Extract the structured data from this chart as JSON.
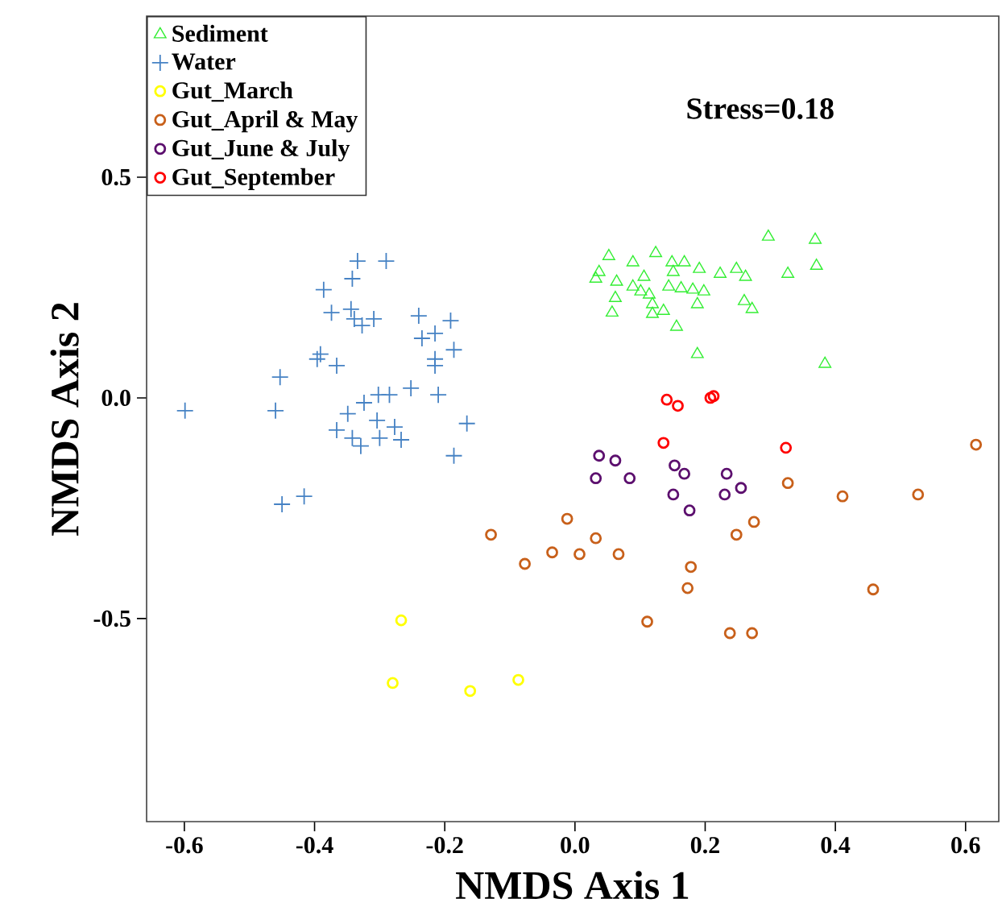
{
  "chart_data": {
    "type": "scatter",
    "xlabel": "NMDS Axis 1",
    "ylabel": "NMDS Axis 2",
    "annotations": [
      "Stress=0.18"
    ],
    "xlim": [
      -0.658,
      0.651
    ],
    "ylim": [
      -0.96,
      0.865
    ],
    "xticks": [
      -0.6,
      -0.4,
      -0.2,
      {
        "value": 0,
        "label": "0.0"
      },
      0.2,
      0.4,
      0.6
    ],
    "yticks": [
      -0.5,
      {
        "value": 0,
        "label": "0.0"
      },
      0.5
    ],
    "grid": false,
    "legend": "top left",
    "series": [
      {
        "name": "Sediment",
        "color": "#33ee33",
        "marker": "triangle",
        "x": [
          0.052,
          0.124,
          0.297,
          0.369,
          0.371,
          0.032,
          0.037,
          0.064,
          0.089,
          0.106,
          0.149,
          0.168,
          0.151,
          0.191,
          0.223,
          0.248,
          0.262,
          0.327,
          0.089,
          0.101,
          0.114,
          0.062,
          0.057,
          0.119,
          0.119,
          0.136,
          0.144,
          0.163,
          0.181,
          0.198,
          0.188,
          0.156,
          0.26,
          0.272,
          0.188,
          0.384
        ],
        "values": [
          0.321,
          0.328,
          0.365,
          0.358,
          0.299,
          0.27,
          0.285,
          0.263,
          0.307,
          0.274,
          0.307,
          0.307,
          0.285,
          0.292,
          0.281,
          0.292,
          0.274,
          0.281,
          0.252,
          0.241,
          0.234,
          0.226,
          0.193,
          0.212,
          0.19,
          0.197,
          0.252,
          0.248,
          0.245,
          0.241,
          0.212,
          0.161,
          0.219,
          0.201,
          0.099,
          0.077
        ]
      },
      {
        "name": "Water",
        "color": "#4682c4",
        "marker": "cross",
        "x": [
          -0.334,
          -0.29,
          -0.342,
          -0.386,
          -0.374,
          -0.344,
          -0.339,
          -0.327,
          -0.309,
          -0.24,
          -0.191,
          -0.235,
          -0.215,
          -0.186,
          -0.215,
          -0.215,
          -0.391,
          -0.396,
          -0.366,
          -0.453,
          -0.599,
          -0.46,
          -0.324,
          -0.302,
          -0.285,
          -0.252,
          -0.21,
          -0.349,
          -0.304,
          -0.366,
          -0.342,
          -0.329,
          -0.3,
          -0.277,
          -0.267,
          -0.166,
          -0.186,
          -0.45,
          -0.416
        ],
        "values": [
          0.31,
          0.31,
          0.27,
          0.245,
          0.193,
          0.201,
          0.179,
          0.164,
          0.179,
          0.186,
          0.175,
          0.135,
          0.146,
          0.109,
          0.088,
          0.073,
          0.099,
          0.088,
          0.073,
          0.047,
          -0.029,
          -0.029,
          -0.011,
          0.007,
          0.007,
          0.022,
          0.007,
          -0.036,
          -0.051,
          -0.073,
          -0.091,
          -0.109,
          -0.091,
          -0.066,
          -0.095,
          -0.058,
          -0.131,
          -0.241,
          -0.223
        ]
      },
      {
        "name": "Gut_March",
        "color": "#ffff00",
        "marker": "circle",
        "x": [
          -0.267,
          -0.28,
          -0.161,
          -0.087
        ],
        "values": [
          -0.504,
          -0.646,
          -0.664,
          -0.639
        ]
      },
      {
        "name": "Gut_April & May",
        "color": "#c8601a",
        "marker": "circle",
        "x": [
          -0.129,
          -0.077,
          -0.035,
          -0.012,
          0.007,
          0.032,
          0.067,
          0.178,
          0.173,
          0.111,
          0.275,
          0.248,
          0.327,
          0.411,
          0.527,
          0.616,
          0.458,
          0.238,
          0.272
        ],
        "values": [
          -0.31,
          -0.376,
          -0.35,
          -0.274,
          -0.354,
          -0.318,
          -0.354,
          -0.383,
          -0.431,
          -0.507,
          -0.281,
          -0.31,
          -0.193,
          -0.223,
          -0.219,
          -0.106,
          -0.434,
          -0.533,
          -0.533
        ]
      },
      {
        "name": "Gut_June & July",
        "color": "#5c0f6e",
        "marker": "circle",
        "x": [
          0.037,
          0.062,
          0.032,
          0.084,
          0.153,
          0.168,
          0.151,
          0.176,
          0.233,
          0.255,
          0.23
        ],
        "values": [
          -0.131,
          -0.142,
          -0.182,
          -0.182,
          -0.153,
          -0.172,
          -0.219,
          -0.255,
          -0.172,
          -0.204,
          -0.219
        ]
      },
      {
        "name": "Gut_September",
        "color": "#ff0000",
        "marker": "circle",
        "x": [
          0.141,
          0.158,
          0.208,
          0.213,
          0.136,
          0.324
        ],
        "values": [
          -0.004,
          -0.018,
          0.0,
          0.004,
          -0.102,
          -0.113
        ]
      }
    ]
  }
}
